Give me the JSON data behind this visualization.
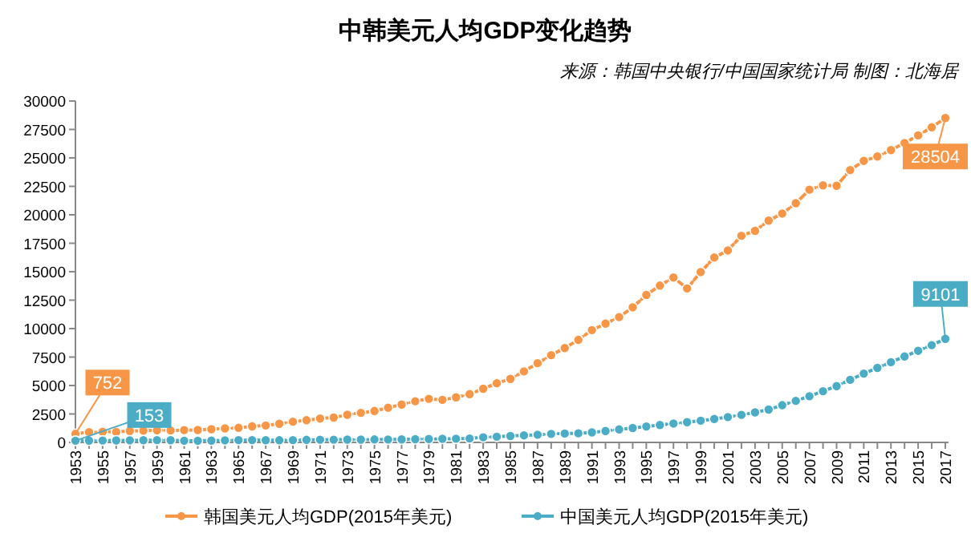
{
  "chart_data": {
    "type": "line",
    "title": "中韩美元人均GDP变化趋势",
    "subtitle": "来源：韩国中央银行/中国国家统计局  制图：北海居",
    "categories": [
      "1953",
      null,
      "1955",
      null,
      "1957",
      null,
      "1959",
      null,
      "1961",
      null,
      "1963",
      null,
      "1965",
      null,
      "1967",
      null,
      "1969",
      null,
      "1971",
      null,
      "1973",
      null,
      "1975",
      null,
      "1977",
      null,
      "1979",
      null,
      "1981",
      null,
      "1983",
      null,
      "1985",
      null,
      "1987",
      null,
      "1989",
      null,
      "1991",
      null,
      "1993",
      null,
      "1995",
      null,
      "1997",
      null,
      "1999",
      null,
      "2001",
      null,
      "2003",
      null,
      "2005",
      null,
      "2007",
      null,
      "2009",
      null,
      "2011",
      null,
      "2013",
      null,
      "2015",
      null,
      "2017"
    ],
    "series": [
      {
        "name": "韩国美元人均GDP(2015年美元)",
        "color": "#f79646",
        "values": [
          752,
          900,
          930,
          920,
          1000,
          1040,
          1060,
          1050,
          1080,
          1090,
          1160,
          1230,
          1280,
          1410,
          1490,
          1640,
          1820,
          1950,
          2100,
          2180,
          2430,
          2600,
          2760,
          3050,
          3330,
          3620,
          3830,
          3740,
          3960,
          4240,
          4720,
          5200,
          5580,
          6240,
          6960,
          7670,
          8290,
          9010,
          9870,
          10440,
          11010,
          11870,
          12960,
          13780,
          14490,
          13530,
          14970,
          16250,
          16870,
          18160,
          18590,
          19490,
          20110,
          21020,
          22210,
          22590,
          22550,
          23930,
          24740,
          25120,
          25690,
          26310,
          26980,
          27690,
          28504
        ]
      },
      {
        "name": "中国美元人均GDP(2015年美元)",
        "color": "#4bacc6",
        "values": [
          153,
          160,
          165,
          175,
          180,
          195,
          200,
          195,
          150,
          145,
          160,
          180,
          200,
          205,
          195,
          190,
          205,
          225,
          235,
          240,
          250,
          250,
          260,
          255,
          265,
          285,
          300,
          315,
          325,
          345,
          450,
          500,
          560,
          620,
          680,
          750,
          780,
          800,
          880,
          1000,
          1140,
          1270,
          1400,
          1530,
          1660,
          1780,
          1910,
          2060,
          2230,
          2420,
          2640,
          2890,
          3270,
          3650,
          4060,
          4500,
          4950,
          5500,
          6050,
          6550,
          7050,
          7550,
          8050,
          8550,
          9101
        ]
      }
    ],
    "annotations": [
      {
        "text": "752",
        "x": "1953",
        "y": 752
      },
      {
        "text": "153",
        "x": "1953",
        "y": 153
      },
      {
        "text": "28504",
        "x": "2017",
        "y": 28504
      },
      {
        "text": "9101",
        "x": "2017",
        "y": 9101
      }
    ],
    "ylim": [
      0,
      30000
    ],
    "yticks": [
      0,
      2500,
      5000,
      7500,
      10000,
      12500,
      15000,
      17500,
      20000,
      22500,
      25000,
      27500,
      30000
    ],
    "grid": false,
    "legend": "bottom",
    "marker": "circle",
    "line_style": "dashed"
  }
}
